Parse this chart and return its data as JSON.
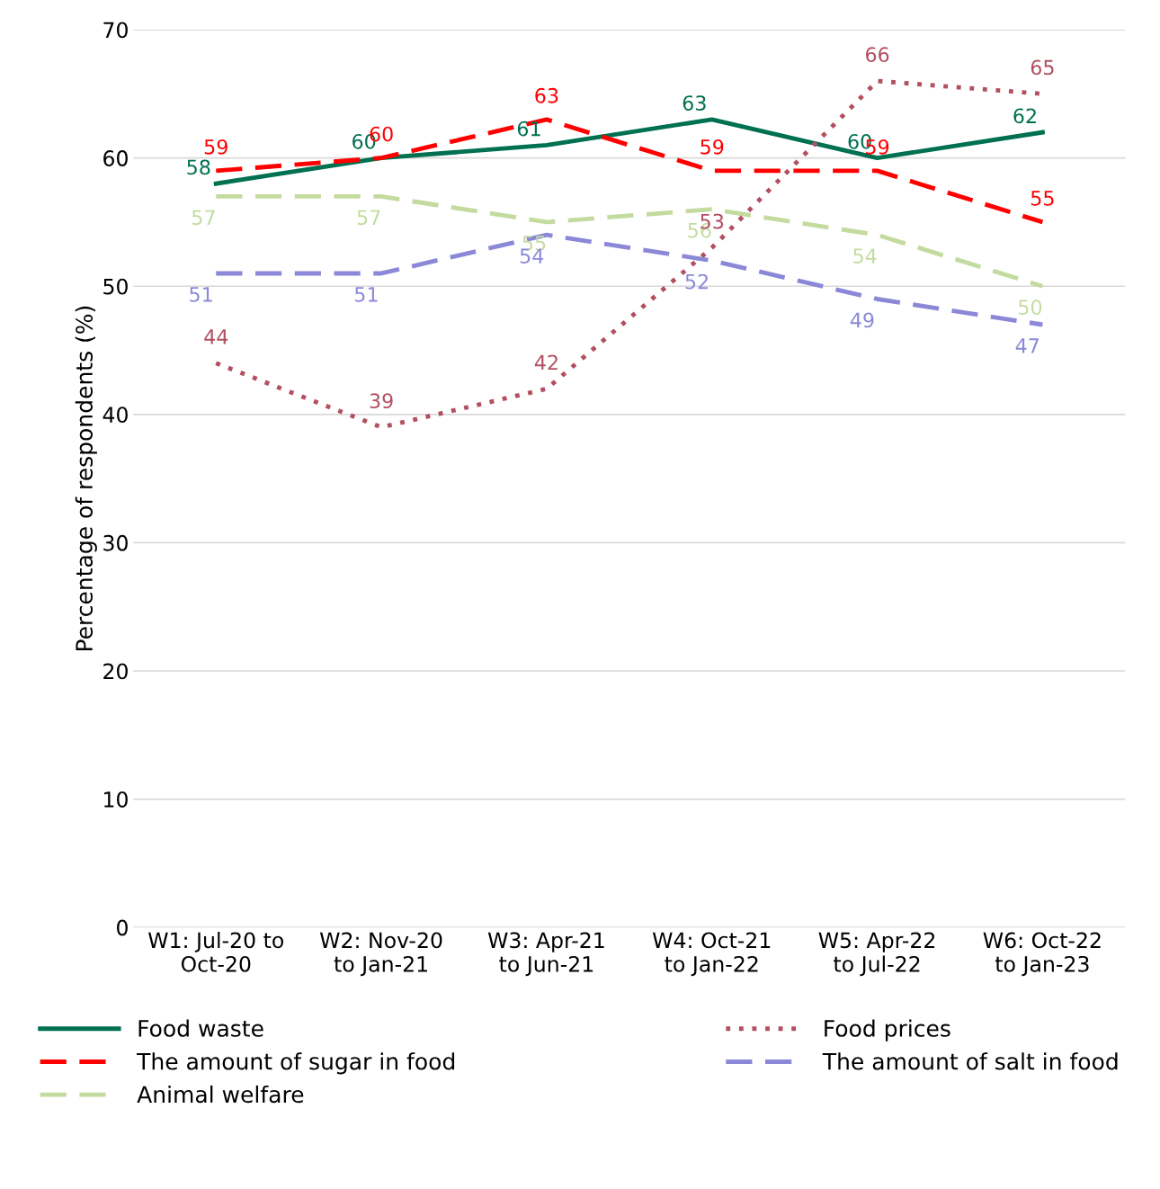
{
  "chart_data": {
    "type": "line",
    "ylabel": "Percentage of respondents (%)",
    "categories": [
      "W1: Jul-20 to\nOct-20",
      "W2: Nov-20\nto Jan-21",
      "W3: Apr-21\nto Jun-21",
      "W4: Oct-21\nto Jan-22",
      "W5: Apr-22\nto Jul-22",
      "W6: Oct-22\nto Jan-23"
    ],
    "series": [
      {
        "name": "Food waste",
        "color": "#007150",
        "line_style": "solid",
        "values": [
          58,
          60,
          61,
          63,
          60,
          62
        ]
      },
      {
        "name": "The amount of sugar in food",
        "color": "#ff0000",
        "line_style": "dashed",
        "values": [
          59,
          60,
          63,
          59,
          59,
          55
        ]
      },
      {
        "name": "Animal welfare",
        "color": "#c4dba0",
        "line_style": "dashed",
        "values": [
          57,
          57,
          55,
          56,
          54,
          50
        ]
      },
      {
        "name": "Food prices",
        "color": "#b24f60",
        "line_style": "dotted",
        "values": [
          44,
          39,
          42,
          53,
          66,
          65
        ]
      },
      {
        "name": "The amount of salt in food",
        "color": "#8c88d8",
        "line_style": "dashed",
        "values": [
          51,
          51,
          54,
          52,
          49,
          47
        ]
      }
    ],
    "ylim": [
      0,
      70
    ],
    "yticks": [
      0,
      10,
      20,
      30,
      40,
      50,
      60,
      70
    ],
    "grid": "y",
    "legend": "bottom",
    "data_labels": true,
    "marker": "none"
  }
}
